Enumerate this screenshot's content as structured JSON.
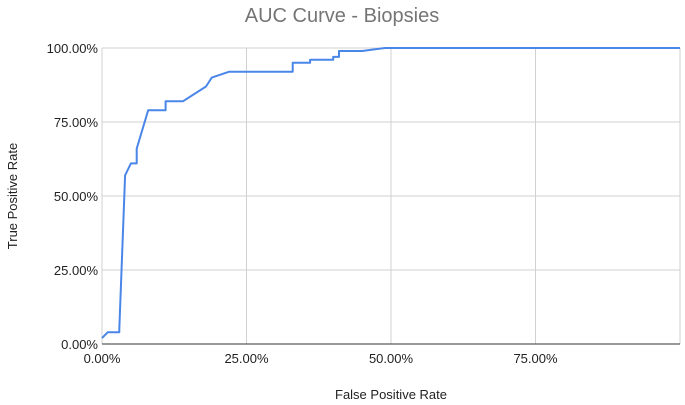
{
  "chart_data": {
    "type": "line",
    "title": "AUC Curve - Biopsies",
    "xlabel": "False Positive Rate",
    "ylabel": "True Positive Rate",
    "xlim": [
      0,
      1
    ],
    "ylim": [
      0,
      1
    ],
    "x_ticks": [
      "0.00%",
      "25.00%",
      "50.00%",
      "75.00%"
    ],
    "x_tick_values": [
      0,
      0.25,
      0.5,
      0.75
    ],
    "y_ticks": [
      "0.00%",
      "25.00%",
      "50.00%",
      "75.00%",
      "100.00%"
    ],
    "y_tick_values": [
      0,
      0.25,
      0.5,
      0.75,
      1
    ],
    "grid": true,
    "legend": "none",
    "series": [
      {
        "color": "#4a86e8",
        "x": [
          0,
          0.01,
          0.03,
          0.03,
          0.04,
          0.05,
          0.06,
          0.06,
          0.08,
          0.11,
          0.11,
          0.14,
          0.18,
          0.19,
          0.22,
          0.27,
          0.33,
          0.33,
          0.36,
          0.36,
          0.4,
          0.4,
          0.41,
          0.41,
          0.45,
          0.49,
          0.5,
          1.0
        ],
        "y": [
          0.02,
          0.04,
          0.04,
          0.05,
          0.57,
          0.61,
          0.61,
          0.66,
          0.79,
          0.79,
          0.82,
          0.82,
          0.87,
          0.9,
          0.92,
          0.92,
          0.92,
          0.95,
          0.95,
          0.96,
          0.96,
          0.97,
          0.97,
          0.99,
          0.99,
          1.0,
          1.0,
          1.0
        ]
      }
    ]
  }
}
